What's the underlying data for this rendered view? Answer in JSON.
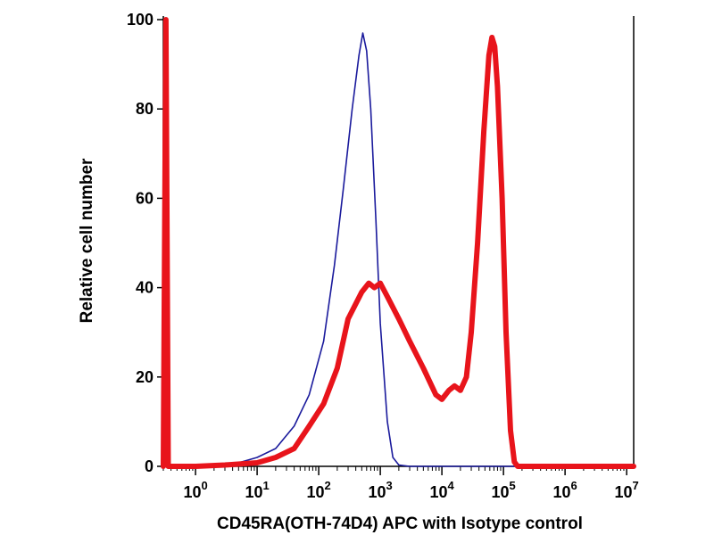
{
  "chart_data": {
    "type": "line",
    "xlabel": "CD45RA(OTH-74D4) APC with Isotype control",
    "ylabel": "Relative cell number",
    "xscale": "log",
    "xlim": [
      0.3,
      13000000
    ],
    "ylim": [
      0,
      100
    ],
    "grid": false,
    "legend": "none",
    "y_ticks": [
      "0",
      "20",
      "40",
      "60",
      "80",
      "100"
    ],
    "x_ticks": [
      {
        "value": 1,
        "base": "10",
        "exp": "0"
      },
      {
        "value": 10,
        "base": "10",
        "exp": "1"
      },
      {
        "value": 100,
        "base": "10",
        "exp": "2"
      },
      {
        "value": 1000,
        "base": "10",
        "exp": "3"
      },
      {
        "value": 10000,
        "base": "10",
        "exp": "4"
      },
      {
        "value": 100000,
        "base": "10",
        "exp": "5"
      },
      {
        "value": 1000000,
        "base": "10",
        "exp": "6"
      },
      {
        "value": 10000000,
        "base": "10",
        "exp": "7"
      }
    ],
    "series": [
      {
        "color": "#1a1a9c",
        "points": [
          [
            0.3,
            0
          ],
          [
            2,
            0.3
          ],
          [
            5,
            0.8
          ],
          [
            10,
            2
          ],
          [
            20,
            4
          ],
          [
            40,
            9
          ],
          [
            70,
            16
          ],
          [
            120,
            28
          ],
          [
            180,
            45
          ],
          [
            250,
            62
          ],
          [
            350,
            80
          ],
          [
            450,
            92
          ],
          [
            520,
            97
          ],
          [
            600,
            93
          ],
          [
            700,
            80
          ],
          [
            850,
            55
          ],
          [
            1000,
            32
          ],
          [
            1300,
            10
          ],
          [
            1600,
            2
          ],
          [
            2000,
            0.3
          ],
          [
            3000,
            0
          ],
          [
            13000000,
            0
          ]
        ]
      },
      {
        "color": "#e8141b",
        "points": [
          [
            0.3,
            0
          ],
          [
            0.33,
            100
          ],
          [
            0.36,
            0
          ],
          [
            1,
            0
          ],
          [
            3,
            0.3
          ],
          [
            10,
            0.8
          ],
          [
            20,
            2
          ],
          [
            40,
            4
          ],
          [
            70,
            9
          ],
          [
            120,
            14
          ],
          [
            200,
            22
          ],
          [
            300,
            33
          ],
          [
            500,
            39
          ],
          [
            650,
            41
          ],
          [
            800,
            40
          ],
          [
            1000,
            41
          ],
          [
            1300,
            38
          ],
          [
            2000,
            33
          ],
          [
            3000,
            28
          ],
          [
            5000,
            22
          ],
          [
            8000,
            16
          ],
          [
            10000,
            15
          ],
          [
            13000,
            17
          ],
          [
            16000,
            18
          ],
          [
            20000,
            17
          ],
          [
            25000,
            20
          ],
          [
            30000,
            30
          ],
          [
            38000,
            50
          ],
          [
            48000,
            75
          ],
          [
            58000,
            92
          ],
          [
            65000,
            96
          ],
          [
            72000,
            94
          ],
          [
            80000,
            85
          ],
          [
            95000,
            60
          ],
          [
            110000,
            30
          ],
          [
            130000,
            8
          ],
          [
            150000,
            1
          ],
          [
            170000,
            0
          ],
          [
            13000000,
            0
          ]
        ]
      }
    ]
  }
}
